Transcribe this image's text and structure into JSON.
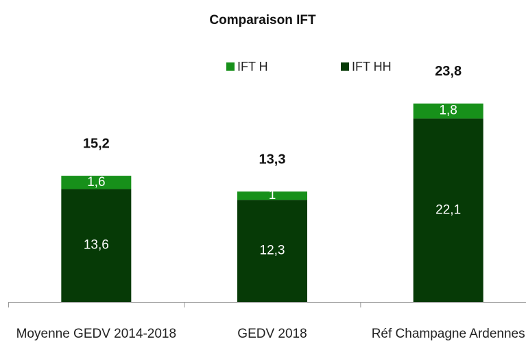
{
  "chart_data": {
    "type": "stacked-bar",
    "title": "Comparaison IFT",
    "categories": [
      "Moyenne GEDV 2014-2018",
      "GEDV 2018",
      "Réf Champagne Ardennes"
    ],
    "series": [
      {
        "name": "IFT HH",
        "color": "#063a06",
        "values": [
          13.6,
          12.3,
          22.1
        ],
        "value_labels": [
          "13,6",
          "12,3",
          "22,1"
        ]
      },
      {
        "name": "IFT H",
        "color": "#17901a",
        "values": [
          1.6,
          1,
          1.8
        ],
        "value_labels": [
          "1,6",
          "1",
          "1,8"
        ]
      }
    ],
    "legend_order": [
      "IFT H",
      "IFT HH"
    ],
    "totals": [
      15.2,
      13.3,
      23.8
    ],
    "total_labels": [
      "15,2",
      "13,3",
      "23,8"
    ],
    "ylim": [
      0,
      25
    ],
    "legend": "top"
  }
}
